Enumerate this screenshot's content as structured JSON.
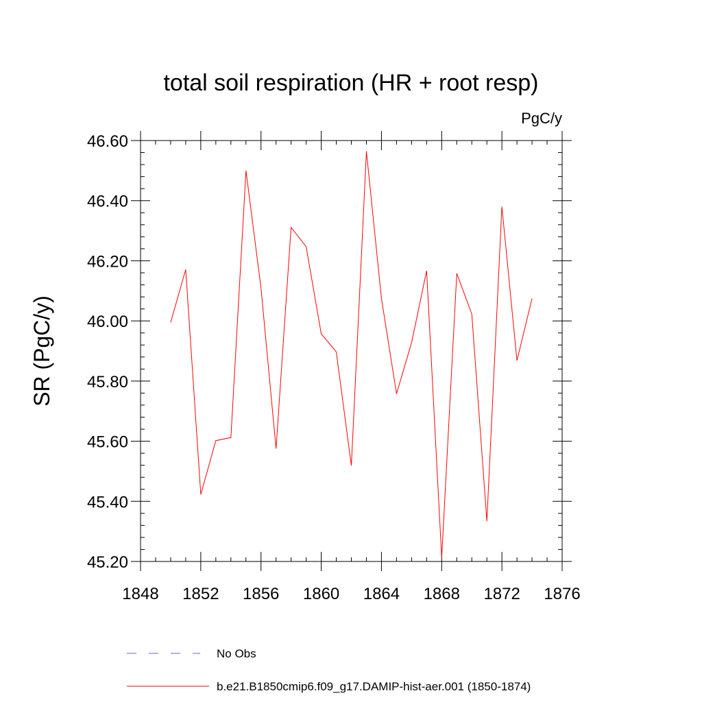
{
  "chart_data": {
    "type": "line",
    "title": "total soil respiration (HR + root resp)",
    "units_label": "PgC/y",
    "xlabel": "",
    "ylabel": "SR  (PgC/y)",
    "xlim": [
      1848,
      1876
    ],
    "ylim": [
      45.2,
      46.6
    ],
    "x_ticks": [
      1848,
      1852,
      1856,
      1860,
      1864,
      1868,
      1872,
      1876
    ],
    "x_tick_labels": [
      "1848",
      "1852",
      "1856",
      "1860",
      "1864",
      "1868",
      "1872",
      "1876"
    ],
    "y_ticks": [
      45.2,
      45.4,
      45.6,
      45.8,
      46.0,
      46.2,
      46.4,
      46.6
    ],
    "y_tick_labels": [
      "45.20",
      "45.40",
      "45.60",
      "45.80",
      "46.00",
      "46.20",
      "46.40",
      "46.60"
    ],
    "grid": false,
    "legend_position": "bottom",
    "series": [
      {
        "name": "b.e21.B1850cmip6.f09_g17.DAMIP-hist-aer.001 (1850-1874)",
        "color": "#ff0000",
        "style": "solid",
        "x": [
          1850,
          1851,
          1852,
          1853,
          1854,
          1855,
          1856,
          1857,
          1858,
          1859,
          1860,
          1861,
          1862,
          1863,
          1864,
          1865,
          1866,
          1867,
          1868,
          1869,
          1870,
          1871,
          1872,
          1873,
          1874
        ],
        "values": [
          45.995,
          46.171,
          45.423,
          45.602,
          45.612,
          46.5,
          46.11,
          45.575,
          46.311,
          46.247,
          45.957,
          45.897,
          45.519,
          46.564,
          46.075,
          45.758,
          45.928,
          46.167,
          45.213,
          46.158,
          46.023,
          45.334,
          46.38,
          45.868,
          46.075
        ]
      }
    ],
    "legend": [
      {
        "label": "No Obs",
        "color": "#6666cc",
        "style": "dashed"
      },
      {
        "label": "b.e21.B1850cmip6.f09_g17.DAMIP-hist-aer.001 (1850-1874)",
        "color": "#ff0000",
        "style": "solid"
      }
    ]
  }
}
